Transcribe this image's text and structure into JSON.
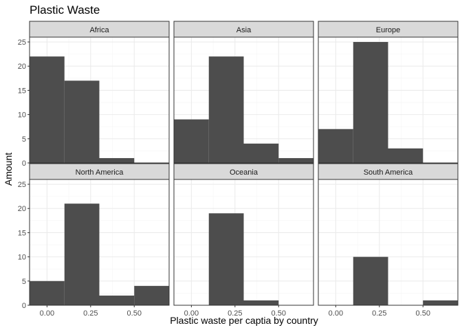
{
  "chart_data": {
    "type": "bar",
    "title": "Plastic Waste",
    "xlabel": "Plastic waste per captia by country",
    "ylabel": "Amount",
    "xlim": [
      -0.1,
      0.7
    ],
    "ylim": [
      0,
      26
    ],
    "xticks": [
      0.0,
      0.25,
      0.5
    ],
    "xtick_labels": [
      "0.00",
      "0.25",
      "0.50"
    ],
    "yticks": [
      0,
      5,
      10,
      15,
      20,
      25
    ],
    "ytick_labels": [
      "0",
      "5",
      "10",
      "15",
      "20",
      "25"
    ],
    "bin_width": 0.2,
    "grid": true,
    "colors": {
      "bar": "#4d4d4d",
      "strip_fill": "#d9d9d9",
      "panel_border": "#333333",
      "grid_major": "#ebebeb",
      "grid_minor": "#f5f5f5"
    },
    "panels": [
      {
        "name": "Africa",
        "bins": [
          {
            "x": 0.0,
            "count": 22
          },
          {
            "x": 0.2,
            "count": 17
          },
          {
            "x": 0.4,
            "count": 1
          }
        ]
      },
      {
        "name": "Asia",
        "bins": [
          {
            "x": 0.0,
            "count": 9
          },
          {
            "x": 0.2,
            "count": 22
          },
          {
            "x": 0.4,
            "count": 4
          },
          {
            "x": 0.6,
            "count": 1
          }
        ]
      },
      {
        "name": "Europe",
        "bins": [
          {
            "x": 0.0,
            "count": 7
          },
          {
            "x": 0.2,
            "count": 25
          },
          {
            "x": 0.4,
            "count": 3
          }
        ]
      },
      {
        "name": "North America",
        "bins": [
          {
            "x": 0.0,
            "count": 5
          },
          {
            "x": 0.2,
            "count": 21
          },
          {
            "x": 0.4,
            "count": 2
          },
          {
            "x": 0.6,
            "count": 4
          }
        ]
      },
      {
        "name": "Oceania",
        "bins": [
          {
            "x": 0.2,
            "count": 19
          },
          {
            "x": 0.4,
            "count": 1
          }
        ]
      },
      {
        "name": "South America",
        "bins": [
          {
            "x": 0.2,
            "count": 10
          },
          {
            "x": 0.6,
            "count": 1
          }
        ]
      }
    ]
  }
}
